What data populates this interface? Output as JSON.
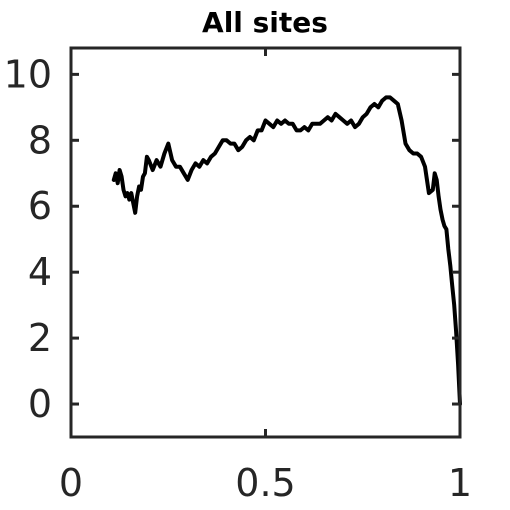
{
  "chart_data": {
    "type": "line",
    "title": "All sites",
    "xlabel": "",
    "ylabel": "",
    "xlim": [
      0,
      1
    ],
    "ylim": [
      -1,
      10.8
    ],
    "xticks": [
      {
        "value": 0,
        "label": "0"
      },
      {
        "value": 0.5,
        "label": "0.5"
      },
      {
        "value": 1,
        "label": "1"
      }
    ],
    "yticks": [
      {
        "value": 0,
        "label": "0"
      },
      {
        "value": 2,
        "label": "2"
      },
      {
        "value": 4,
        "label": "4"
      },
      {
        "value": 6,
        "label": "6"
      },
      {
        "value": 8,
        "label": "8"
      },
      {
        "value": 10,
        "label": "10"
      }
    ],
    "grid": false,
    "line_color": "#000000",
    "series": [
      {
        "x": [
          0.11,
          0.115,
          0.12,
          0.125,
          0.13,
          0.135,
          0.14,
          0.145,
          0.15,
          0.155,
          0.16,
          0.165,
          0.17,
          0.175,
          0.18,
          0.185,
          0.19,
          0.195,
          0.2,
          0.21,
          0.22,
          0.23,
          0.24,
          0.25,
          0.26,
          0.27,
          0.28,
          0.29,
          0.3,
          0.31,
          0.32,
          0.33,
          0.34,
          0.35,
          0.36,
          0.37,
          0.38,
          0.39,
          0.4,
          0.41,
          0.42,
          0.43,
          0.44,
          0.45,
          0.46,
          0.47,
          0.48,
          0.49,
          0.5,
          0.51,
          0.52,
          0.53,
          0.54,
          0.55,
          0.56,
          0.57,
          0.58,
          0.59,
          0.6,
          0.61,
          0.62,
          0.63,
          0.64,
          0.65,
          0.66,
          0.67,
          0.68,
          0.69,
          0.7,
          0.71,
          0.72,
          0.73,
          0.74,
          0.75,
          0.76,
          0.77,
          0.78,
          0.79,
          0.8,
          0.81,
          0.82,
          0.83,
          0.84,
          0.85,
          0.86,
          0.87,
          0.88,
          0.89,
          0.9,
          0.91,
          0.92,
          0.93,
          0.935,
          0.94,
          0.945,
          0.95,
          0.955,
          0.96,
          0.965,
          0.97,
          0.975,
          0.98,
          0.985,
          0.99,
          0.995,
          1.0
        ],
        "y": [
          6.8,
          7.0,
          6.7,
          7.1,
          6.9,
          6.5,
          6.3,
          6.4,
          6.2,
          6.4,
          6.1,
          5.8,
          6.3,
          6.6,
          6.5,
          6.9,
          7.0,
          7.5,
          7.4,
          7.1,
          7.4,
          7.2,
          7.6,
          7.9,
          7.4,
          7.2,
          7.2,
          7.0,
          6.8,
          7.1,
          7.3,
          7.2,
          7.4,
          7.3,
          7.5,
          7.6,
          7.8,
          8.0,
          8.0,
          7.9,
          7.9,
          7.7,
          7.8,
          8.0,
          8.1,
          8.0,
          8.3,
          8.3,
          8.6,
          8.5,
          8.4,
          8.6,
          8.5,
          8.6,
          8.5,
          8.5,
          8.3,
          8.3,
          8.4,
          8.3,
          8.5,
          8.5,
          8.5,
          8.6,
          8.7,
          8.6,
          8.8,
          8.7,
          8.6,
          8.5,
          8.6,
          8.4,
          8.5,
          8.7,
          8.8,
          9.0,
          9.1,
          9.0,
          9.2,
          9.3,
          9.3,
          9.2,
          9.1,
          8.6,
          7.9,
          7.7,
          7.6,
          7.6,
          7.5,
          7.2,
          6.4,
          6.5,
          7.0,
          6.8,
          6.3,
          5.9,
          5.6,
          5.4,
          5.3,
          4.7,
          4.2,
          3.6,
          3.0,
          2.2,
          1.2,
          0.0
        ]
      }
    ]
  }
}
